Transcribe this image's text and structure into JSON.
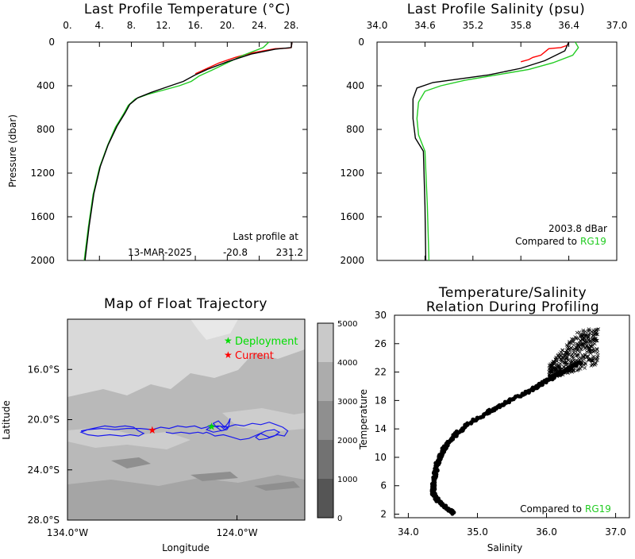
{
  "chart_data": [
    {
      "id": "temp",
      "type": "line",
      "title": "Last Profile Temperature (°C)",
      "xlabel": "",
      "ylabel": "Pressure (dbar)",
      "xlim": [
        0,
        30
      ],
      "ylim": [
        2000,
        0
      ],
      "xticks": [
        0,
        4,
        8,
        12,
        16,
        20,
        24,
        28
      ],
      "xtick_labels": [
        "0.",
        "4.",
        "8.",
        "12.",
        "16.",
        "20.",
        "24.",
        "28."
      ],
      "yticks": [
        0,
        400,
        800,
        1200,
        1600,
        2000
      ],
      "annotation": [
        "Last profile at",
        "13-MAR-2025",
        "-20.8",
        "231.2"
      ],
      "series": [
        {
          "color": "#ff0000",
          "x": [
            28.1,
            28.0,
            27.7,
            26.0,
            23.0,
            21.0,
            19.0,
            17.5,
            16.0
          ],
          "y": [
            0,
            50,
            55,
            60,
            100,
            140,
            190,
            240,
            290
          ]
        },
        {
          "color": "#22cc22",
          "x": [
            25.2,
            24.5,
            22.0,
            20.0,
            18.0,
            16.5,
            15.5,
            14.0,
            12.0,
            10.0,
            8.5,
            7.6,
            7.0,
            6.0,
            5.0,
            4.0,
            3.2,
            2.6,
            2.1
          ],
          "y": [
            0,
            50,
            120,
            190,
            260,
            310,
            360,
            400,
            440,
            480,
            520,
            580,
            660,
            780,
            950,
            1150,
            1400,
            1700,
            2000
          ]
        },
        {
          "color": "#000000",
          "x": [
            28.1,
            28.0,
            26.0,
            23.0,
            20.0,
            17.5,
            16.0,
            14.5,
            12.5,
            10.5,
            8.8,
            7.8,
            7.2,
            6.2,
            5.1,
            4.1,
            3.3,
            2.7,
            2.2
          ],
          "y": [
            0,
            50,
            65,
            110,
            180,
            250,
            300,
            360,
            410,
            460,
            510,
            570,
            650,
            770,
            940,
            1140,
            1390,
            1690,
            2000
          ]
        }
      ]
    },
    {
      "id": "sal",
      "type": "line",
      "title": "Last Profile Salinity (psu)",
      "xlabel": "",
      "ylabel": "",
      "xlim": [
        34.0,
        37.0
      ],
      "ylim": [
        2000,
        0
      ],
      "xticks": [
        34.0,
        34.6,
        35.2,
        35.8,
        36.4,
        37.0
      ],
      "xtick_labels": [
        "34.0",
        "34.6",
        "35.2",
        "35.8",
        "36.4",
        "37.0"
      ],
      "yticks": [
        0,
        400,
        800,
        1200,
        1600,
        2000
      ],
      "annotation": [
        "2003.8 dBar",
        "Compared to",
        "RG19"
      ],
      "series": [
        {
          "color": "#ff0000",
          "x": [
            36.4,
            36.38,
            36.3,
            36.15,
            36.1,
            36.05,
            35.95,
            35.9,
            35.8
          ],
          "y": [
            0,
            30,
            50,
            60,
            90,
            120,
            140,
            160,
            180
          ]
        },
        {
          "color": "#22cc22",
          "x": [
            36.48,
            36.52,
            36.45,
            36.2,
            35.9,
            35.5,
            35.1,
            34.8,
            34.6,
            34.52,
            34.5,
            34.52,
            34.6,
            34.63,
            34.65
          ],
          "y": [
            0,
            50,
            120,
            190,
            250,
            300,
            350,
            400,
            450,
            550,
            700,
            850,
            1000,
            1500,
            2000
          ]
        },
        {
          "color": "#000000",
          "x": [
            36.4,
            36.35,
            36.1,
            35.8,
            35.4,
            35.0,
            34.7,
            34.5,
            34.45,
            34.45,
            34.48,
            34.58,
            34.6,
            34.61
          ],
          "y": [
            0,
            80,
            170,
            240,
            300,
            340,
            370,
            420,
            520,
            700,
            880,
            1000,
            1500,
            2000
          ]
        }
      ]
    },
    {
      "id": "map",
      "type": "scatter",
      "title": "Map of Float Trajectory",
      "xlabel": "Longitude",
      "ylabel": "Latitude",
      "xlim": [
        134.0,
        120.0
      ],
      "ylim": [
        28.0,
        12.0
      ],
      "xticks": [
        134.0,
        124.0
      ],
      "xtick_labels": [
        "134.0°W",
        "124.0°W"
      ],
      "yticks": [
        16.0,
        20.0,
        24.0,
        28.0
      ],
      "ytick_labels": [
        "16.0°S",
        "20.0°S",
        "24.0°S",
        "28.0°S"
      ],
      "legend": [
        {
          "name": "Deployment",
          "color": "#00dd00"
        },
        {
          "name": "Current",
          "color": "#ff0000"
        }
      ],
      "colorbar": {
        "ticks": [
          0,
          1000,
          2000,
          3000,
          4000,
          5000
        ],
        "labels": [
          "0",
          "1000",
          "2000",
          "3000",
          "4000",
          "5000"
        ],
        "colors": [
          "#555555",
          "#727272",
          "#8f8f8f",
          "#acacac",
          "#c9c9c9",
          "#e6e6e6"
        ]
      },
      "track": {
        "lon": [
          133.2,
          132.5,
          131.8,
          131.2,
          130.6,
          130.1,
          129.8,
          129.5,
          129.8,
          130.3,
          130.8,
          131.5,
          132.2,
          132.8,
          133.2,
          132.8,
          132.0,
          131.2,
          130.5,
          129.7,
          129.0,
          128.5,
          128.0,
          127.5,
          127.0,
          126.5,
          126.1,
          125.8,
          125.5,
          125.2,
          125.0,
          124.8,
          124.6,
          124.5,
          124.4,
          124.5,
          124.9,
          125.2,
          125.4,
          125.1,
          124.8,
          124.5,
          124.6,
          125.0,
          125.4,
          125.8,
          125.6,
          125.1,
          124.6,
          124.1,
          123.6,
          123.1,
          122.6,
          122.1,
          121.7,
          121.3,
          121.0,
          121.2,
          121.6,
          122.1,
          122.6,
          122.9,
          122.7,
          122.2,
          121.8,
          121.5,
          121.8,
          122.3,
          122.8,
          123.3,
          123.8,
          124.3,
          124.8,
          125.3,
          125.6,
          125.8,
          126.0,
          126.3,
          126.8,
          127.3,
          127.8,
          128.2
        ],
        "lat": [
          20.9,
          20.7,
          20.5,
          20.6,
          20.5,
          20.6,
          20.9,
          21.1,
          21.3,
          21.2,
          21.3,
          21.2,
          21.3,
          21.2,
          21.0,
          20.8,
          20.7,
          20.8,
          20.7,
          20.7,
          20.8,
          20.6,
          20.7,
          20.5,
          20.6,
          20.5,
          20.7,
          20.6,
          20.4,
          20.6,
          20.5,
          20.7,
          20.4,
          20.2,
          19.9,
          20.6,
          20.9,
          20.6,
          20.3,
          20.1,
          20.5,
          20.6,
          20.8,
          20.9,
          21.0,
          20.8,
          20.6,
          20.5,
          20.6,
          20.4,
          20.5,
          20.3,
          20.4,
          20.2,
          20.4,
          20.6,
          20.9,
          21.3,
          21.2,
          21.4,
          21.1,
          21.4,
          21.6,
          21.5,
          21.3,
          21.0,
          20.8,
          20.9,
          21.2,
          21.5,
          21.6,
          21.4,
          21.2,
          21.3,
          21.1,
          21.0,
          21.1,
          21.0,
          21.1,
          21.0,
          21.1,
          21.0
        ]
      },
      "deployment": {
        "lon": 125.5,
        "lat": 20.5
      },
      "current": {
        "lon": 129.0,
        "lat": 20.8
      }
    },
    {
      "id": "ts",
      "type": "scatter",
      "title": "Temperature/Salinity",
      "subtitle": "Relation During Profiling",
      "xlabel": "Salinity",
      "ylabel": "Temperature",
      "xlim": [
        33.8,
        37.2
      ],
      "ylim": [
        1.5,
        30
      ],
      "xticks": [
        34.0,
        35.0,
        36.0,
        37.0
      ],
      "xtick_labels": [
        "34.0",
        "35.0",
        "36.0",
        "37.0"
      ],
      "yticks": [
        2,
        6,
        10,
        14,
        18,
        22,
        26,
        30
      ],
      "annotation": [
        "Compared to",
        "RG19"
      ],
      "profile": {
        "s": [
          34.66,
          34.58,
          34.5,
          34.42,
          34.37,
          34.36,
          34.36,
          34.38,
          34.4,
          34.42,
          34.45,
          34.5,
          34.55,
          34.62,
          34.72,
          34.85,
          35.0,
          35.2,
          35.4,
          35.6,
          35.8,
          35.95,
          36.1,
          36.25,
          36.38,
          36.5
        ],
        "t": [
          2.2,
          2.6,
          3.2,
          4.0,
          4.8,
          5.5,
          6.3,
          7.2,
          8.1,
          9.1,
          10.0,
          10.9,
          11.7,
          12.6,
          13.5,
          14.5,
          15.5,
          16.6,
          17.6,
          18.6,
          19.6,
          20.5,
          21.3,
          22.1,
          22.8,
          23.4
        ]
      },
      "cloud": {
        "s": [
          35.8,
          36.75
        ],
        "t": [
          20.0,
          27.8
        ]
      }
    }
  ]
}
